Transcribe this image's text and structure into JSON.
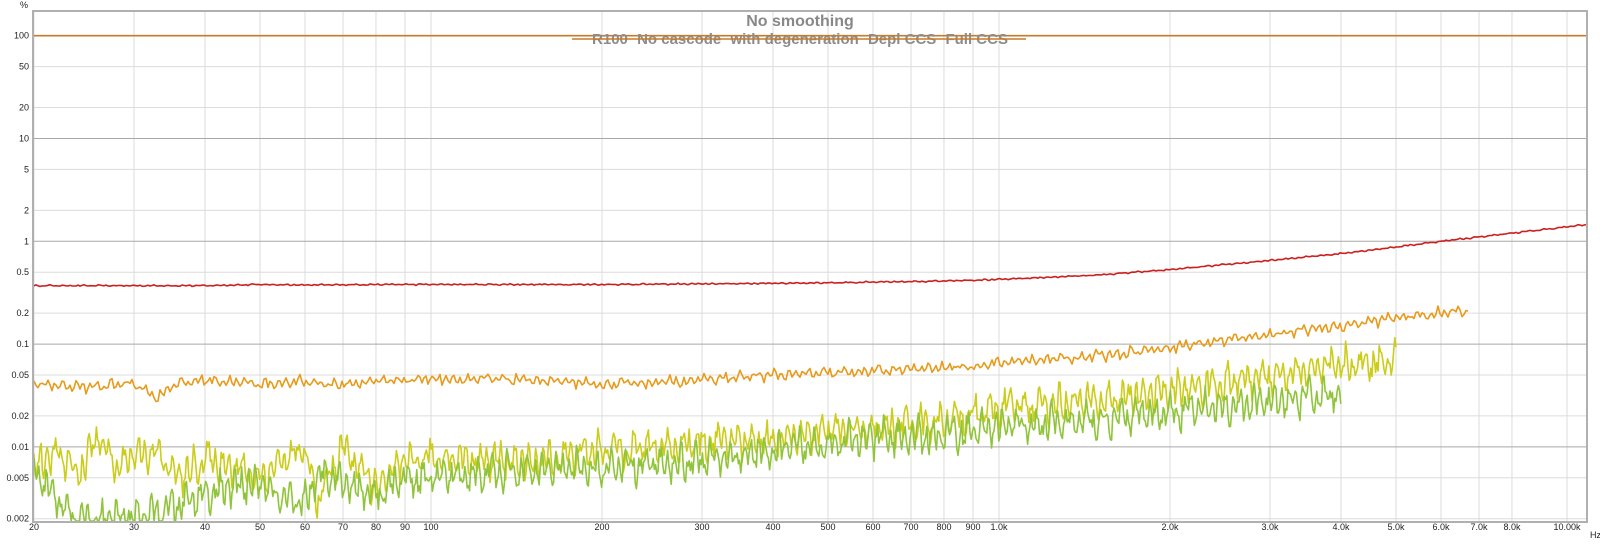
{
  "chart_data": {
    "type": "line",
    "title": "No smoothing",
    "y_unit": "%",
    "x_unit": "Hz",
    "x_scale": "log",
    "y_scale": "log",
    "xlim": [
      20,
      10800
    ],
    "ylim": [
      0.0019,
      170
    ],
    "grid": true,
    "legend_placement": "top-center",
    "x_ticks": [
      {
        "value": 20,
        "label": "20"
      },
      {
        "value": 30,
        "label": "30"
      },
      {
        "value": 40,
        "label": "40"
      },
      {
        "value": 50,
        "label": "50"
      },
      {
        "value": 60,
        "label": "60"
      },
      {
        "value": 70,
        "label": "70"
      },
      {
        "value": 80,
        "label": "80"
      },
      {
        "value": 90,
        "label": "90"
      },
      {
        "value": 100,
        "label": "100"
      },
      {
        "value": 200,
        "label": "200"
      },
      {
        "value": 300,
        "label": "300"
      },
      {
        "value": 400,
        "label": "400"
      },
      {
        "value": 500,
        "label": "500"
      },
      {
        "value": 600,
        "label": "600"
      },
      {
        "value": 700,
        "label": "700"
      },
      {
        "value": 800,
        "label": "800"
      },
      {
        "value": 900,
        "label": "900"
      },
      {
        "value": 1000,
        "label": "1.0k"
      },
      {
        "value": 2000,
        "label": "2.0k"
      },
      {
        "value": 3000,
        "label": "3.0k"
      },
      {
        "value": 4000,
        "label": "4.0k"
      },
      {
        "value": 5000,
        "label": "5.0k"
      },
      {
        "value": 6000,
        "label": "6.0k"
      },
      {
        "value": 7000,
        "label": "7.0k"
      },
      {
        "value": 8000,
        "label": "8.0k"
      },
      {
        "value": 10000,
        "label": "10.00k"
      }
    ],
    "y_ticks": [
      {
        "value": 100,
        "label": "100",
        "major": true
      },
      {
        "value": 50,
        "label": "50",
        "major": false
      },
      {
        "value": 20,
        "label": "20",
        "major": false
      },
      {
        "value": 10,
        "label": "10",
        "major": true
      },
      {
        "value": 5,
        "label": "5",
        "major": false
      },
      {
        "value": 2,
        "label": "2",
        "major": false
      },
      {
        "value": 1,
        "label": "1",
        "major": true
      },
      {
        "value": 0.5,
        "label": "0.5",
        "major": false
      },
      {
        "value": 0.2,
        "label": "0.2",
        "major": false
      },
      {
        "value": 0.1,
        "label": "0.1",
        "major": true
      },
      {
        "value": 0.05,
        "label": "0.05",
        "major": false
      },
      {
        "value": 0.02,
        "label": "0.02",
        "major": false
      },
      {
        "value": 0.01,
        "label": "0.01",
        "major": true
      },
      {
        "value": 0.005,
        "label": "0.005",
        "major": false
      },
      {
        "value": 0.002,
        "label": "0.002",
        "major": false
      }
    ],
    "series": [
      {
        "name": "R100",
        "color": "#c87a28",
        "jitter": 0,
        "points": [
          [
            20,
            100
          ],
          [
            10800,
            100
          ]
        ]
      },
      {
        "name": "No cascode",
        "color": "#cc1f1f",
        "jitter": 0.008,
        "points": [
          [
            20,
            0.37
          ],
          [
            30,
            0.37
          ],
          [
            40,
            0.37
          ],
          [
            50,
            0.38
          ],
          [
            60,
            0.375
          ],
          [
            80,
            0.38
          ],
          [
            100,
            0.38
          ],
          [
            200,
            0.38
          ],
          [
            300,
            0.385
          ],
          [
            400,
            0.39
          ],
          [
            500,
            0.395
          ],
          [
            700,
            0.405
          ],
          [
            1000,
            0.425
          ],
          [
            1500,
            0.47
          ],
          [
            2000,
            0.53
          ],
          [
            3000,
            0.65
          ],
          [
            4000,
            0.76
          ],
          [
            5000,
            0.88
          ],
          [
            6000,
            1.0
          ],
          [
            8000,
            1.2
          ],
          [
            10800,
            1.45
          ]
        ]
      },
      {
        "name": "with degeneration",
        "color": "#e89a1a",
        "jitter": 0.06,
        "points": [
          [
            20,
            0.041
          ],
          [
            25,
            0.038
          ],
          [
            30,
            0.042
          ],
          [
            33,
            0.03
          ],
          [
            35,
            0.04
          ],
          [
            40,
            0.045
          ],
          [
            50,
            0.041
          ],
          [
            60,
            0.043
          ],
          [
            70,
            0.04
          ],
          [
            80,
            0.044
          ],
          [
            100,
            0.046
          ],
          [
            150,
            0.045
          ],
          [
            200,
            0.04
          ],
          [
            300,
            0.045
          ],
          [
            400,
            0.05
          ],
          [
            500,
            0.052
          ],
          [
            700,
            0.057
          ],
          [
            900,
            0.061
          ],
          [
            1000,
            0.066
          ],
          [
            1500,
            0.077
          ],
          [
            2000,
            0.093
          ],
          [
            3000,
            0.125
          ],
          [
            4000,
            0.15
          ],
          [
            5000,
            0.18
          ],
          [
            6000,
            0.2
          ],
          [
            6700,
            0.21
          ]
        ]
      },
      {
        "name": "Depl CCS",
        "color": "#cccc1a",
        "jitter": 0.2,
        "points": [
          [
            20,
            0.0065
          ],
          [
            22,
            0.0085
          ],
          [
            24,
            0.0055
          ],
          [
            26,
            0.013
          ],
          [
            28,
            0.006
          ],
          [
            30,
            0.009
          ],
          [
            33,
            0.0085
          ],
          [
            36,
            0.005
          ],
          [
            40,
            0.0075
          ],
          [
            45,
            0.0065
          ],
          [
            50,
            0.005
          ],
          [
            55,
            0.0075
          ],
          [
            60,
            0.009
          ],
          [
            63,
            0.003
          ],
          [
            70,
            0.01
          ],
          [
            80,
            0.004
          ],
          [
            90,
            0.007
          ],
          [
            100,
            0.008
          ],
          [
            150,
            0.007
          ],
          [
            200,
            0.0095
          ],
          [
            250,
            0.01
          ],
          [
            300,
            0.011
          ],
          [
            400,
            0.012
          ],
          [
            500,
            0.014
          ],
          [
            600,
            0.015
          ],
          [
            700,
            0.017
          ],
          [
            800,
            0.018
          ],
          [
            900,
            0.02
          ],
          [
            1000,
            0.024
          ],
          [
            1200,
            0.026
          ],
          [
            1500,
            0.028
          ],
          [
            2000,
            0.035
          ],
          [
            2500,
            0.042
          ],
          [
            3000,
            0.05
          ],
          [
            3500,
            0.055
          ],
          [
            4000,
            0.06
          ],
          [
            4500,
            0.066
          ],
          [
            5000,
            0.075
          ]
        ]
      },
      {
        "name": "Full CCS",
        "color": "#90c43a",
        "jitter": 0.2,
        "points": [
          [
            20,
            0.006
          ],
          [
            22,
            0.003
          ],
          [
            24,
            0.0019
          ],
          [
            30,
            0.002
          ],
          [
            33,
            0.0022
          ],
          [
            40,
            0.0035
          ],
          [
            50,
            0.0045
          ],
          [
            55,
            0.0028
          ],
          [
            60,
            0.003
          ],
          [
            65,
            0.006
          ],
          [
            70,
            0.0045
          ],
          [
            80,
            0.0035
          ],
          [
            90,
            0.005
          ],
          [
            100,
            0.005
          ],
          [
            150,
            0.006
          ],
          [
            200,
            0.006
          ],
          [
            300,
            0.0075
          ],
          [
            400,
            0.009
          ],
          [
            500,
            0.011
          ],
          [
            600,
            0.012
          ],
          [
            800,
            0.013
          ],
          [
            1000,
            0.016
          ],
          [
            1500,
            0.018
          ],
          [
            2000,
            0.022
          ],
          [
            2500,
            0.024
          ],
          [
            3000,
            0.027
          ],
          [
            3500,
            0.03
          ],
          [
            4000,
            0.034
          ]
        ]
      }
    ]
  }
}
